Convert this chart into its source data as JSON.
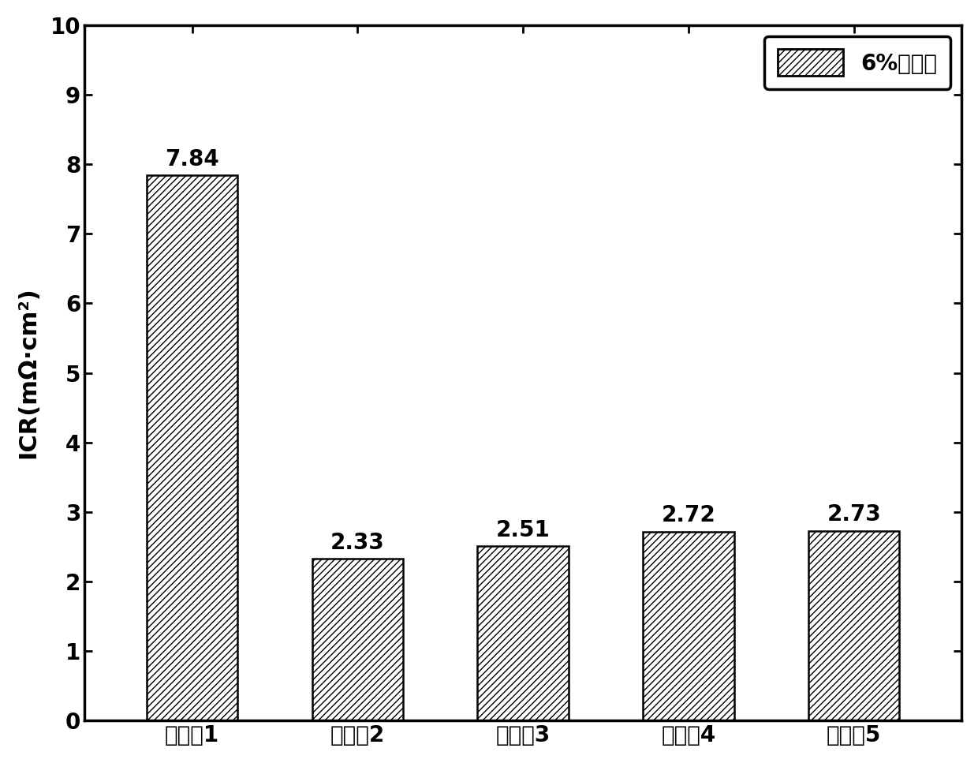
{
  "categories": [
    "实施例1",
    "实施例2",
    "实施例3",
    "实施例4",
    "实施例5"
  ],
  "values": [
    7.84,
    2.33,
    2.51,
    2.72,
    2.73
  ],
  "bar_color": "#ffffff",
  "bar_edgecolor": "#000000",
  "hatch": "////",
  "ylabel": "ICR(mΩ·cm²)",
  "ylim": [
    0,
    10
  ],
  "yticks": [
    0,
    1,
    2,
    3,
    4,
    5,
    6,
    7,
    8,
    9,
    10
  ],
  "legend_label": "6%氢氟酸",
  "bar_width": 0.55,
  "label_fontsize": 22,
  "tick_fontsize": 20,
  "value_fontsize": 20,
  "legend_fontsize": 20,
  "background_color": "#ffffff",
  "spine_linewidth": 2.5
}
